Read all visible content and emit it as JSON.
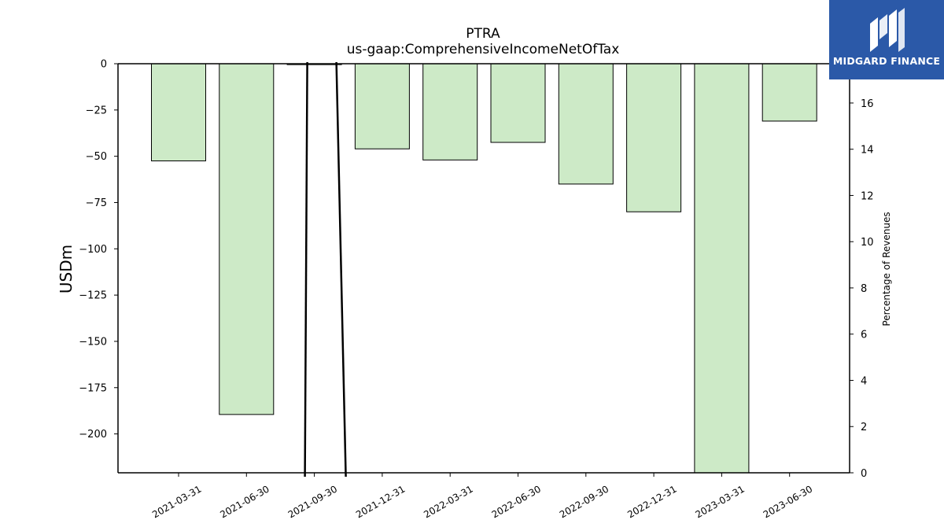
{
  "chart_data": {
    "type": "bar",
    "title": "PTRA",
    "subtitle": "us-gaap:ComprehensiveIncomeNetOfTax",
    "ylabel": "USDm",
    "y2label": "Percentage of Revenues",
    "categories": [
      "2021-03-31",
      "2021-06-30",
      "2021-09-30",
      "2021-12-31",
      "2022-03-31",
      "2022-06-30",
      "2022-09-30",
      "2022-12-31",
      "2023-03-31",
      "2023-06-30"
    ],
    "values": [
      -52.5,
      -189.5,
      -0.5,
      -46,
      -52,
      -42.5,
      -65,
      -80,
      -221,
      -31
    ],
    "ylim": [
      -221,
      0
    ],
    "yticks": [
      0,
      -25,
      -50,
      -75,
      -100,
      -125,
      -150,
      -175,
      -200
    ],
    "y2lim": [
      0,
      17.7
    ],
    "y2ticks": [
      0,
      2,
      4,
      6,
      8,
      10,
      12,
      14,
      16
    ],
    "line_series": {
      "name": "",
      "values": [
        null,
        null,
        0,
        null,
        null,
        null,
        null,
        null,
        null,
        null
      ]
    },
    "colors": {
      "bar_fill": "#cdeac7",
      "bar_edge": "#000000",
      "line": "#000000"
    }
  },
  "logo": {
    "text": "MIDGARD FINANCE",
    "icon": "midgard-m-logo-icon",
    "color": "#2b59a8"
  }
}
